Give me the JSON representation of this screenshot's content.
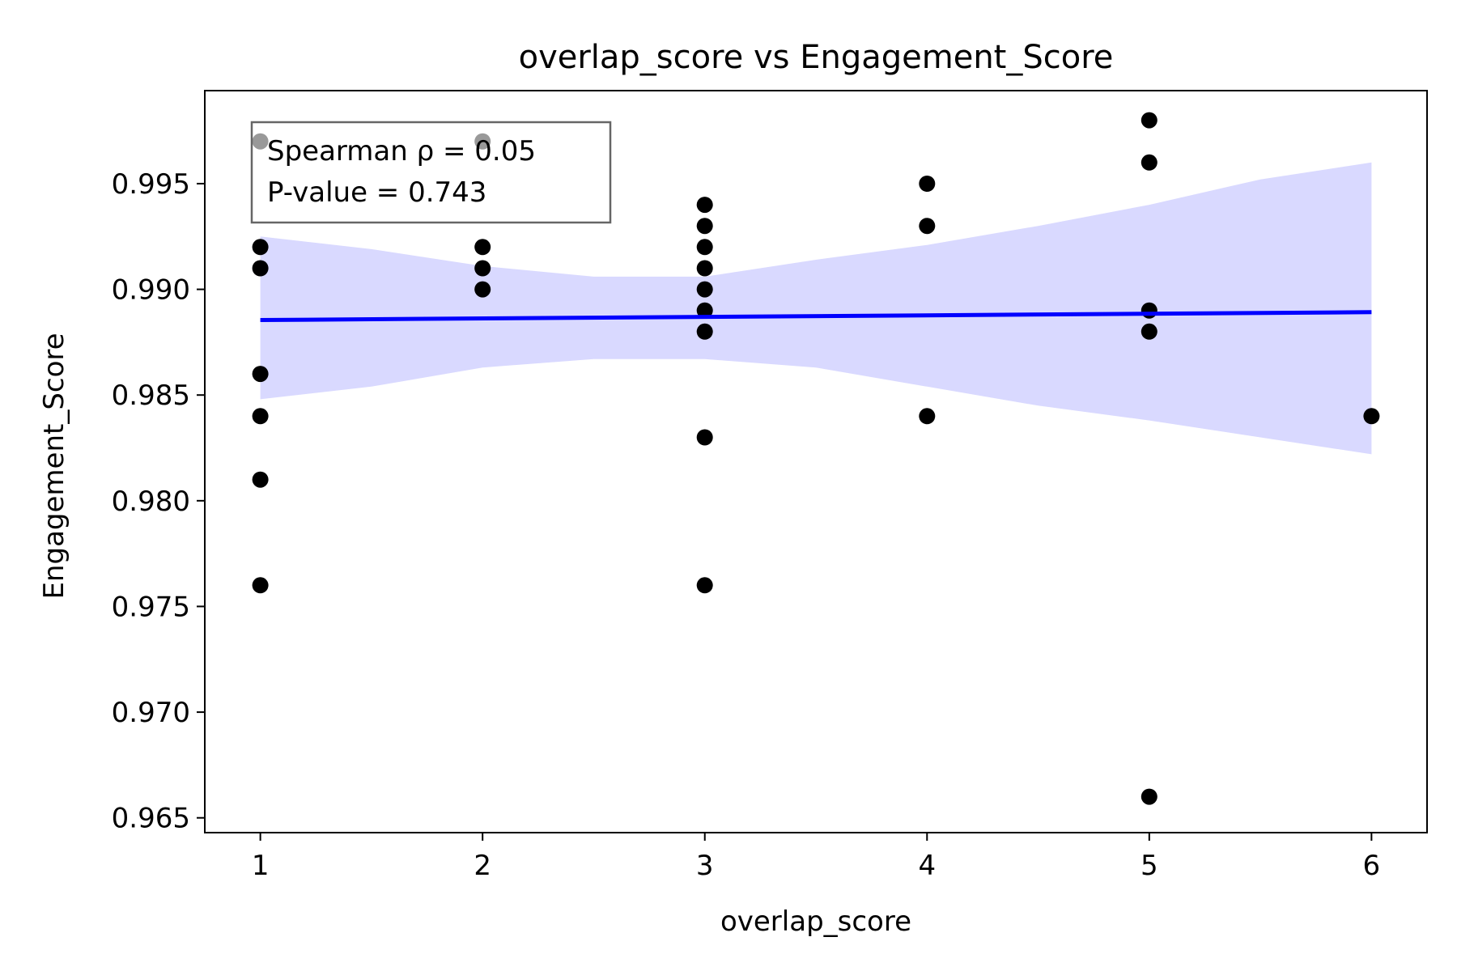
{
  "chart_data": {
    "type": "scatter",
    "title": "overlap_score vs Engagement_Score",
    "xlabel": "overlap_score",
    "ylabel": "Engagement_Score",
    "xlim": [
      0.75,
      6.25
    ],
    "ylim": [
      0.9643,
      0.9994
    ],
    "x_ticks": [
      1,
      2,
      3,
      4,
      5,
      6
    ],
    "x_tick_labels": [
      "1",
      "2",
      "3",
      "4",
      "5",
      "6"
    ],
    "y_ticks": [
      0.965,
      0.97,
      0.975,
      0.98,
      0.985,
      0.99,
      0.995
    ],
    "y_tick_labels": [
      "0.965",
      "0.970",
      "0.975",
      "0.980",
      "0.985",
      "0.990",
      "0.995"
    ],
    "grid": false,
    "points": [
      {
        "x": 1,
        "y": 0.997
      },
      {
        "x": 1,
        "y": 0.992
      },
      {
        "x": 1,
        "y": 0.991
      },
      {
        "x": 1,
        "y": 0.986
      },
      {
        "x": 1,
        "y": 0.984
      },
      {
        "x": 1,
        "y": 0.981
      },
      {
        "x": 1,
        "y": 0.976
      },
      {
        "x": 2,
        "y": 0.997
      },
      {
        "x": 2,
        "y": 0.992
      },
      {
        "x": 2,
        "y": 0.991
      },
      {
        "x": 2,
        "y": 0.99
      },
      {
        "x": 3,
        "y": 0.994
      },
      {
        "x": 3,
        "y": 0.993
      },
      {
        "x": 3,
        "y": 0.992
      },
      {
        "x": 3,
        "y": 0.991
      },
      {
        "x": 3,
        "y": 0.99
      },
      {
        "x": 3,
        "y": 0.989
      },
      {
        "x": 3,
        "y": 0.988
      },
      {
        "x": 3,
        "y": 0.983
      },
      {
        "x": 3,
        "y": 0.976
      },
      {
        "x": 4,
        "y": 0.995
      },
      {
        "x": 4,
        "y": 0.993
      },
      {
        "x": 4,
        "y": 0.984
      },
      {
        "x": 5,
        "y": 0.998
      },
      {
        "x": 5,
        "y": 0.996
      },
      {
        "x": 5,
        "y": 0.989
      },
      {
        "x": 5,
        "y": 0.988
      },
      {
        "x": 5,
        "y": 0.966
      },
      {
        "x": 6,
        "y": 0.984
      }
    ],
    "regression_line": {
      "x": [
        1,
        6
      ],
      "y": [
        0.98855,
        0.98892
      ],
      "color": "#0000ff"
    },
    "confidence_band": {
      "x": [
        1,
        1.5,
        2,
        2.5,
        3,
        3.5,
        4,
        4.5,
        5,
        5.5,
        6
      ],
      "upper": [
        0.9925,
        0.9919,
        0.9911,
        0.9906,
        0.9906,
        0.9914,
        0.9921,
        0.993,
        0.994,
        0.9952,
        0.996
      ],
      "lower": [
        0.9848,
        0.9854,
        0.9863,
        0.9867,
        0.9867,
        0.9863,
        0.9854,
        0.9845,
        0.9838,
        0.983,
        0.9822
      ],
      "color": "#d9d9ff"
    },
    "annotation": {
      "lines": [
        "Spearman ρ = 0.05",
        "P-value = 0.743"
      ],
      "placement": "top-left"
    },
    "colors": {
      "points": "#000000",
      "line": "#0000ff",
      "band": "#d9d9ff",
      "annotation_border": "#666666"
    }
  }
}
